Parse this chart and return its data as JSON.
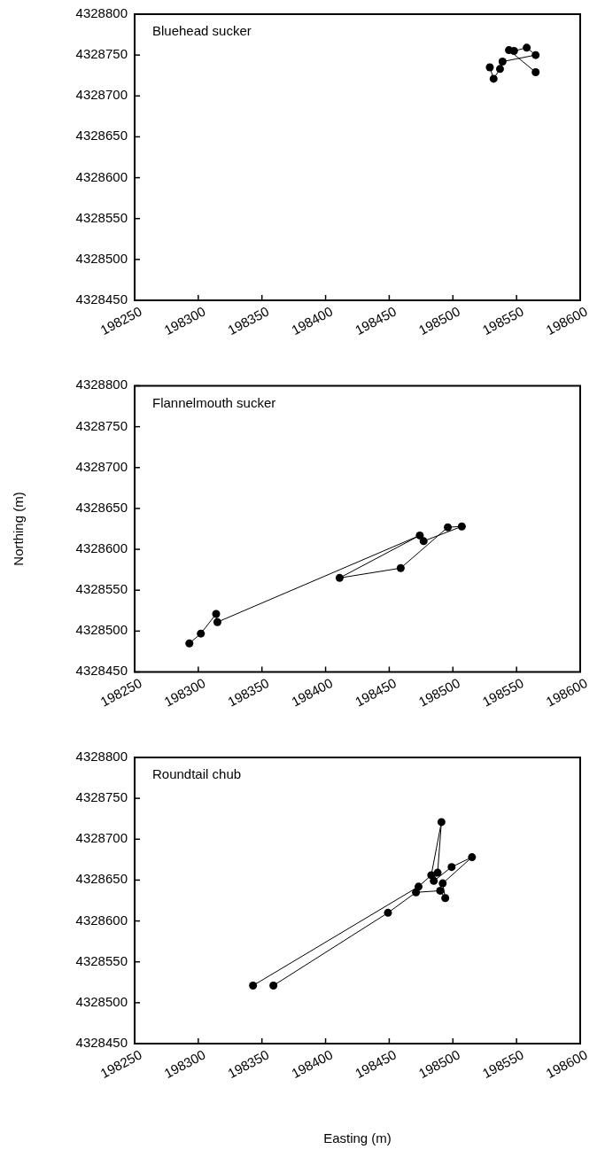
{
  "chart_data": [
    {
      "type": "line",
      "title": "Bluehead sucker",
      "marker": "circle",
      "line_style": "solid",
      "xlim": [
        198250,
        198600
      ],
      "ylim": [
        4328450,
        4328800
      ],
      "xticks": [
        198250,
        198300,
        198350,
        198400,
        198450,
        198500,
        198550,
        198600
      ],
      "yticks": [
        4328450,
        4328500,
        4328550,
        4328600,
        4328650,
        4328700,
        4328750,
        4328800
      ],
      "series": [
        {
          "color": "#000000",
          "x": [
            198529,
            198532,
            198537,
            198539,
            198565,
            198558,
            198548,
            198544,
            198565
          ],
          "values": [
            4328735,
            4328721,
            4328733,
            4328742,
            4328750,
            4328759,
            4328755,
            4328756,
            4328729
          ]
        }
      ]
    },
    {
      "type": "line",
      "title": "Flannelmouth sucker",
      "ylabel": "Northing (m)",
      "marker": "circle",
      "line_style": "solid",
      "xlim": [
        198250,
        198600
      ],
      "ylim": [
        4328450,
        4328800
      ],
      "xticks": [
        198250,
        198300,
        198350,
        198400,
        198450,
        198500,
        198550,
        198600
      ],
      "yticks": [
        4328450,
        4328500,
        4328550,
        4328600,
        4328650,
        4328700,
        4328750,
        4328800
      ],
      "series": [
        {
          "color": "#000000",
          "x": [
            198293,
            198302,
            198314,
            198315,
            198474,
            198411,
            198459,
            198496,
            198507,
            198477
          ],
          "values": [
            4328485,
            4328497,
            4328521,
            4328511,
            4328617,
            4328565,
            4328577,
            4328627,
            4328628,
            4328610
          ]
        }
      ]
    },
    {
      "type": "line",
      "title": "Roundtail chub",
      "xlabel": "Easting (m)",
      "marker": "circle",
      "line_style": "solid",
      "xlim": [
        198250,
        198600
      ],
      "ylim": [
        4328450,
        4328800
      ],
      "xticks": [
        198250,
        198300,
        198350,
        198400,
        198450,
        198500,
        198550,
        198600
      ],
      "yticks": [
        4328450,
        4328500,
        4328550,
        4328600,
        4328650,
        4328700,
        4328750,
        4328800
      ],
      "series": [
        {
          "color": "#000000",
          "x": [
            198359,
            198449,
            198471,
            198490,
            198494,
            198492,
            198515,
            198499,
            198485,
            198488,
            198491,
            198483,
            198473,
            198343
          ],
          "values": [
            4328521,
            4328610,
            4328635,
            4328637,
            4328628,
            4328646,
            4328678,
            4328666,
            4328649,
            4328659,
            4328721,
            4328656,
            4328642,
            4328521
          ]
        }
      ]
    }
  ]
}
